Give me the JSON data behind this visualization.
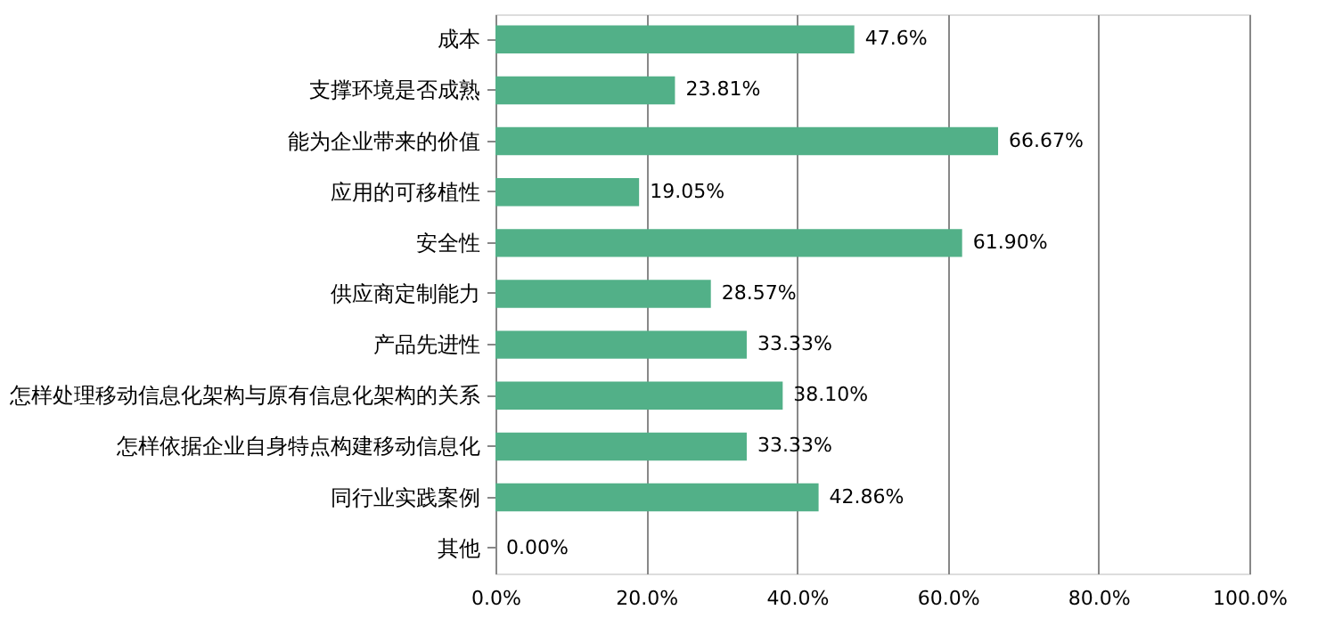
{
  "chart_data": {
    "type": "bar",
    "orientation": "horizontal",
    "categories": [
      "成本",
      "支撑环境是否成熟",
      "能为企业带来的价值",
      "应用的可移植性",
      "安全性",
      "供应商定制能力",
      "产品先进性",
      "怎样处理移动信息化架构与原有信息化架构的关系",
      "怎样依据企业自身特点构建移动信息化",
      "同行业实践案例",
      "其他"
    ],
    "values": [
      47.6,
      23.81,
      66.67,
      19.05,
      61.9,
      28.57,
      33.33,
      38.1,
      33.33,
      42.86,
      0.0
    ],
    "value_labels": [
      "47.6%",
      "23.81%",
      "66.67%",
      "19.05%",
      "61.90%",
      "28.57%",
      "33.33%",
      "38.10%",
      "33.33%",
      "42.86%",
      "0.00%"
    ],
    "color": "#52b088",
    "xlim": [
      0,
      100
    ],
    "xticks": [
      {
        "value": 0,
        "label": "0.0%"
      },
      {
        "value": 20,
        "label": "20.0%"
      },
      {
        "value": 40,
        "label": "40.0%"
      },
      {
        "value": 60,
        "label": "60.0%"
      },
      {
        "value": 80,
        "label": "80.0%"
      },
      {
        "value": 100,
        "label": "100.0%"
      }
    ],
    "grid": "x"
  }
}
